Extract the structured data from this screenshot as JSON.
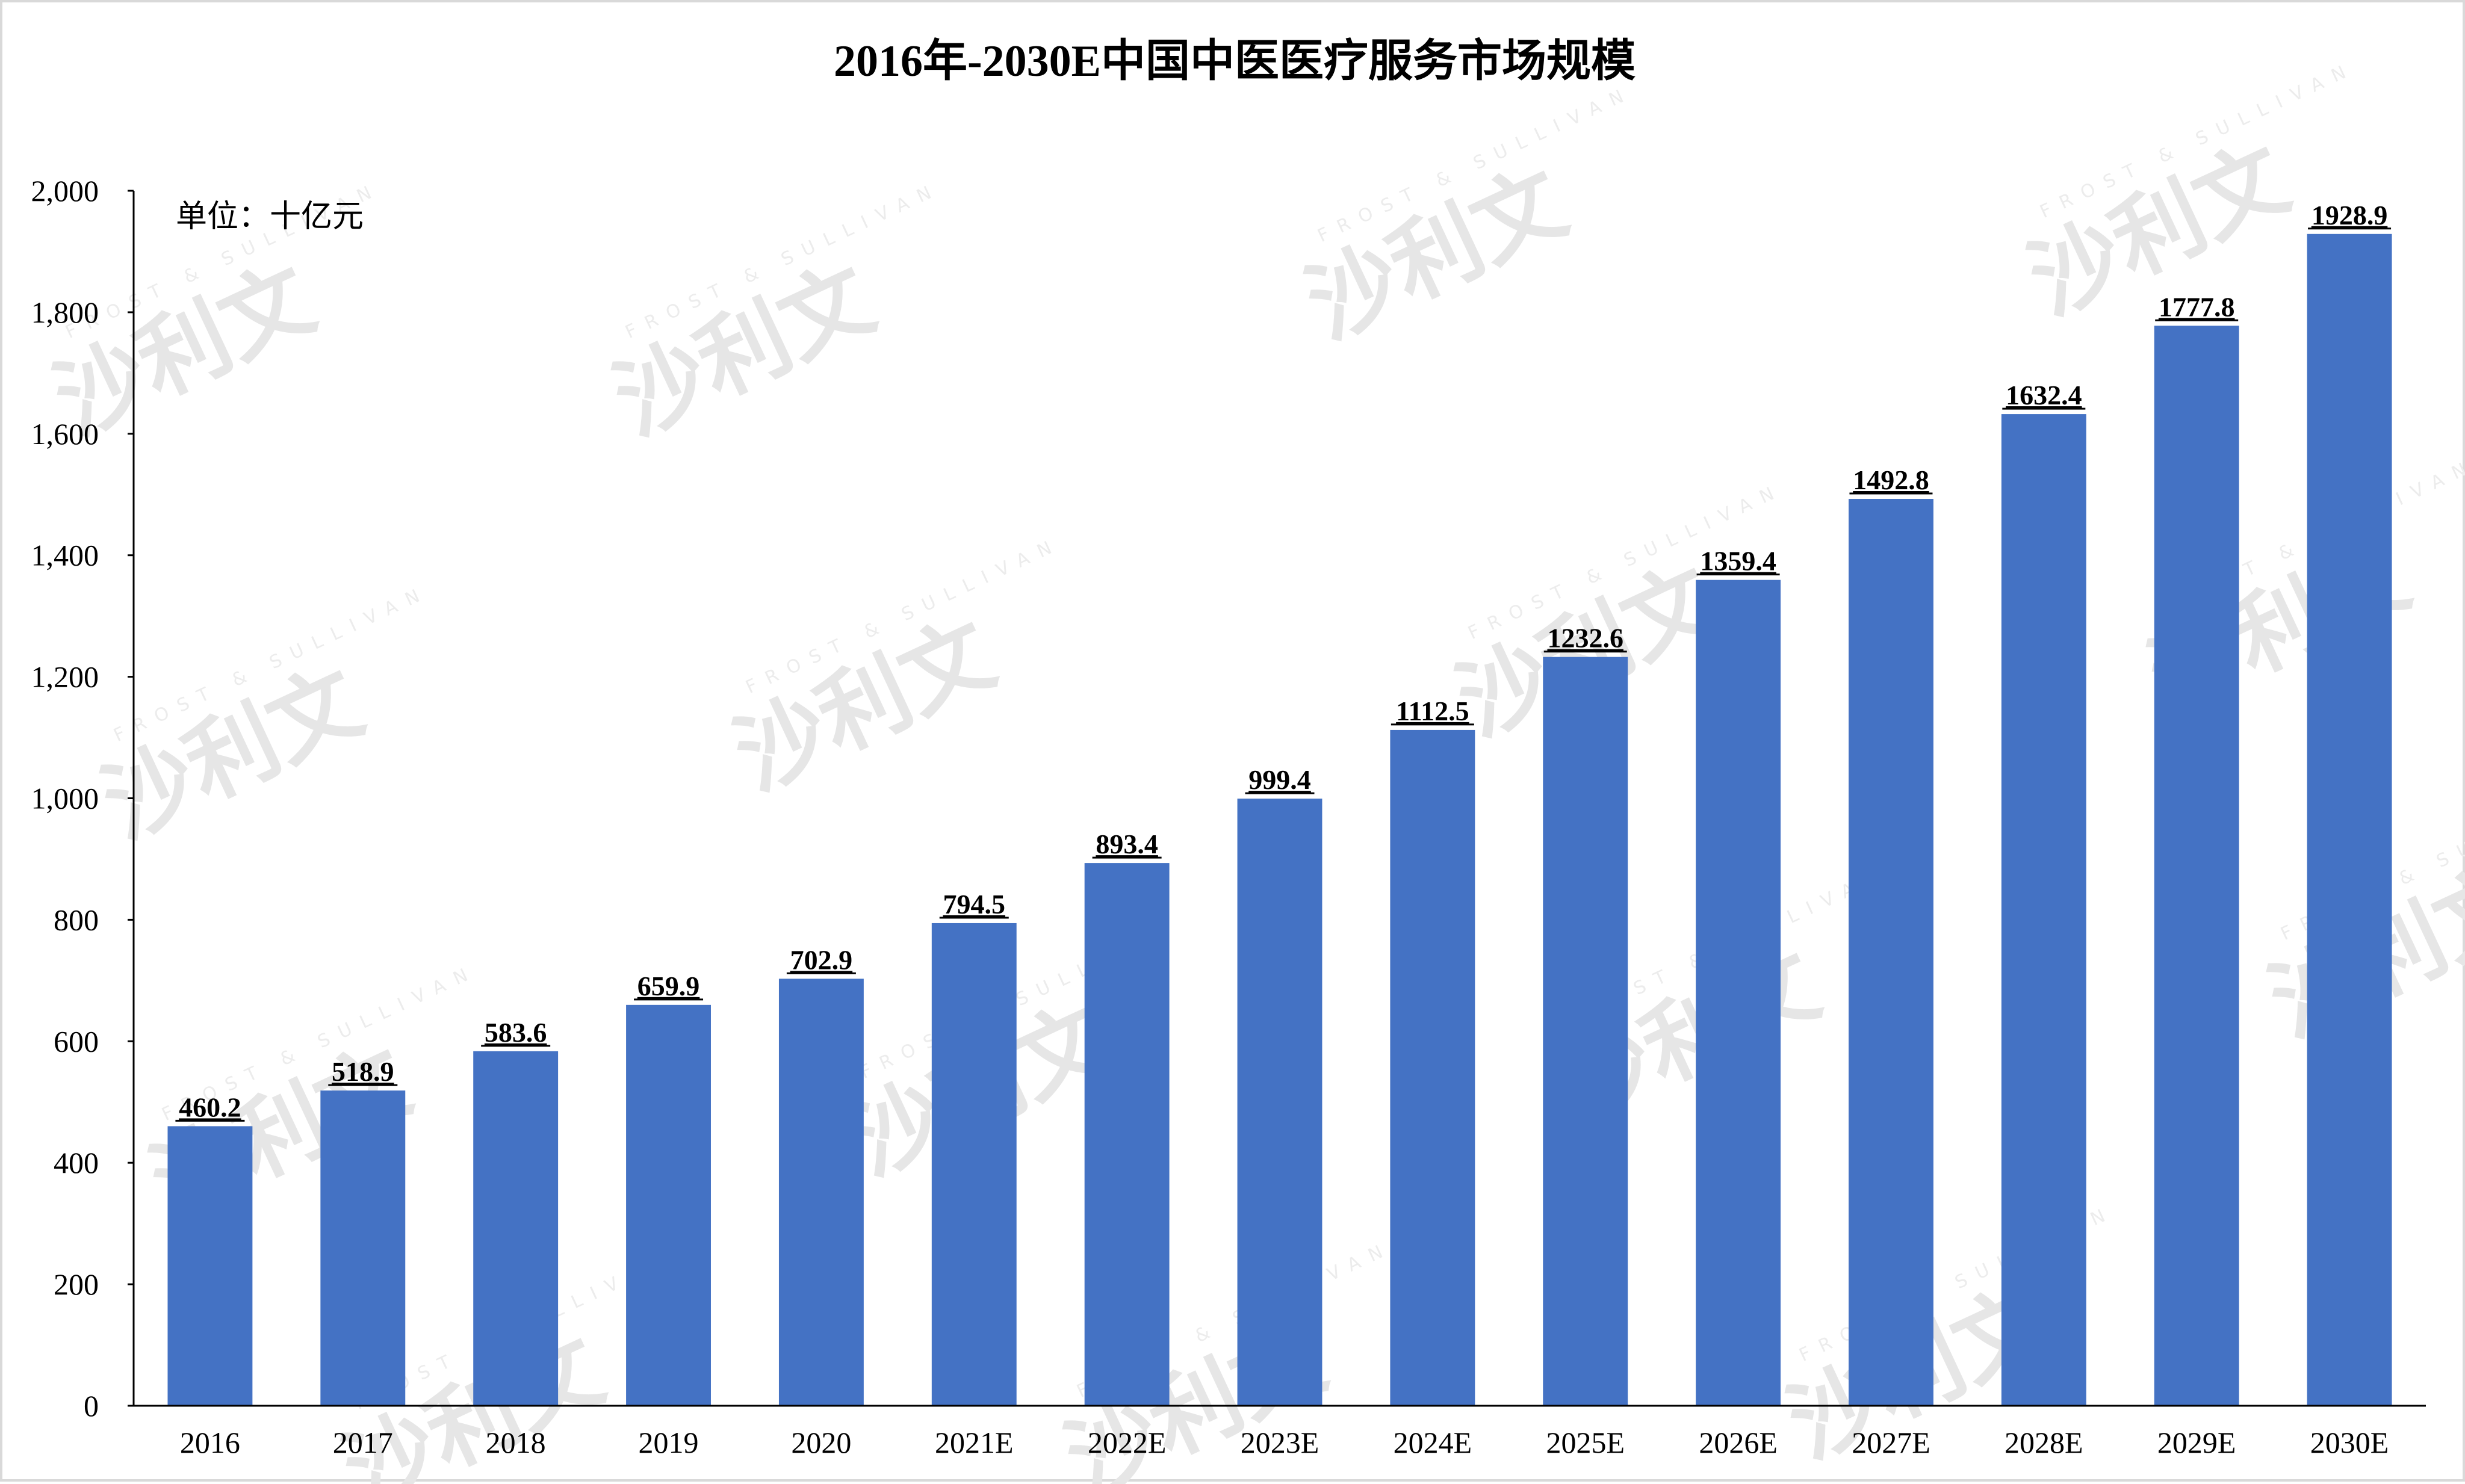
{
  "chart_data": {
    "type": "bar",
    "title": "2016年-2030E中国中医医疗服务市场规模",
    "unit_label": "单位：十亿元",
    "categories": [
      "2016",
      "2017",
      "2018",
      "2019",
      "2020",
      "2021E",
      "2022E",
      "2023E",
      "2024E",
      "2025E",
      "2026E",
      "2027E",
      "2028E",
      "2029E",
      "2030E"
    ],
    "values": [
      460.2,
      518.9,
      583.6,
      659.9,
      702.9,
      794.5,
      893.4,
      999.4,
      1112.5,
      1232.6,
      1359.4,
      1492.8,
      1632.4,
      1777.8,
      1928.9
    ],
    "value_labels": [
      "460.2",
      "518.9",
      "583.6",
      "659.9",
      "702.9",
      "794.5",
      "893.4",
      "999.4",
      "1112.5",
      "1232.6",
      "1359.4",
      "1492.8",
      "1632.4",
      "1777.8",
      "1928.9"
    ],
    "ylim": [
      0,
      2000
    ],
    "yticks": [
      0,
      200,
      400,
      600,
      800,
      1000,
      1200,
      1400,
      1600,
      1800,
      2000
    ],
    "ytick_labels": [
      "0",
      "200",
      "400",
      "600",
      "800",
      "1,000",
      "1,200",
      "1,400",
      "1,600",
      "1,800",
      "2,000"
    ],
    "xlabel": "",
    "ylabel": "",
    "grid": false,
    "legend": "none",
    "colors": {
      "bar": "#4472C4",
      "axis": "#000000",
      "watermark": "#e6e6e6"
    }
  },
  "watermark": {
    "cn": "沙利文",
    "en": "FROST & SULLIVAN"
  }
}
